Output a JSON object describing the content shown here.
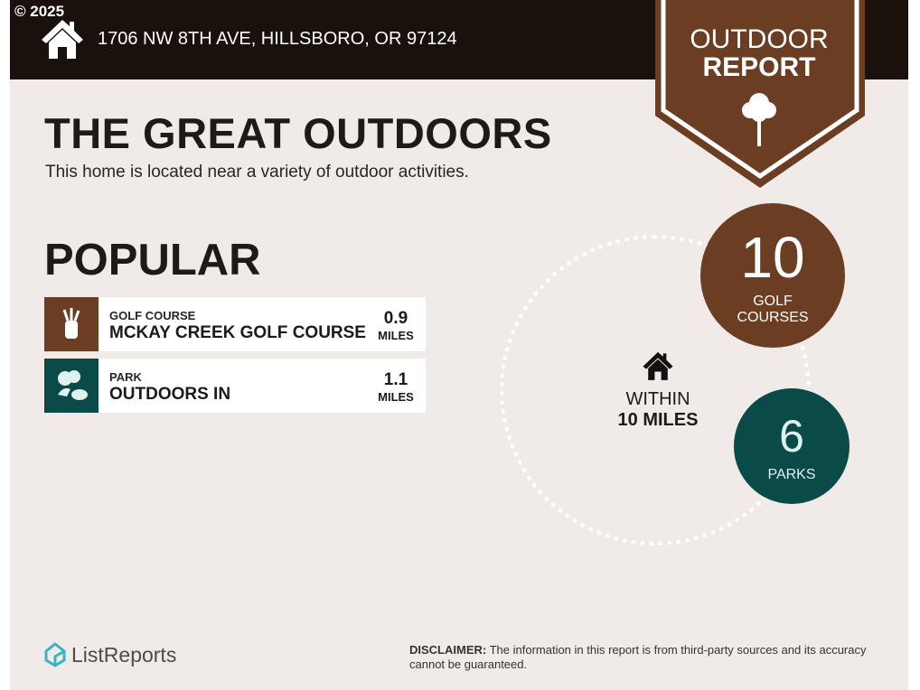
{
  "header": {
    "copyright": "© 2025",
    "address": "1706 NW 8TH AVE, HILLSBORO, OR 97124"
  },
  "badge": {
    "line1": "OUTDOOR",
    "line2": "REPORT",
    "icon": "tree-icon"
  },
  "title": "THE GREAT OUTDOORS",
  "subtitle": "This home is located near a variety of outdoor activities.",
  "popular": {
    "heading": "POPULAR",
    "items": [
      {
        "category": "GOLF COURSE",
        "name": "MCKAY CREEK GOLF COURSE",
        "distance": "0.9",
        "unit": "MILES",
        "icon": "golf-bag-icon",
        "color": "#6b3d22"
      },
      {
        "category": "PARK",
        "name": "OUTDOORS IN",
        "distance": "1.1",
        "unit": "MILES",
        "icon": "park-trees-icon",
        "color": "#0b4b47"
      }
    ]
  },
  "radius": {
    "line1": "WITHIN",
    "line2": "10 MILES"
  },
  "counts": [
    {
      "value": "10",
      "label1": "GOLF",
      "label2": "COURSES",
      "color": "#6b3d22"
    },
    {
      "value": "6",
      "label1": "PARKS",
      "color": "#0b4b47"
    }
  ],
  "footer": {
    "logo": "ListReports",
    "disclaimer_label": "DISCLAIMER:",
    "disclaimer_text": " The information in this report is from third-party sources and its accuracy cannot be guaranteed."
  }
}
